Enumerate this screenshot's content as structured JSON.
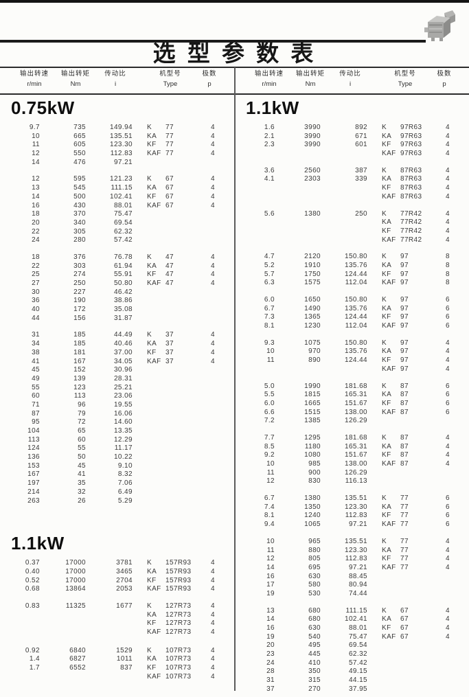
{
  "page": {
    "title": "选 型 参 数 表"
  },
  "columns": {
    "speed_zh": "输出转速",
    "speed_unit": "r/min",
    "torque_zh": "输出转矩",
    "torque_unit": "Nm",
    "ratio_zh": "传动比",
    "ratio_unit": "i",
    "type_zh": "机型号",
    "type_unit": "Type",
    "poles_zh": "极数",
    "poles_unit": "p"
  },
  "left": {
    "sections": [
      {
        "heading": "0.75kW",
        "blocks": [
          {
            "rows": [
              [
                "9.7",
                "735",
                "149.94",
                "K",
                "77",
                "4"
              ],
              [
                "10",
                "665",
                "135.51",
                "KA",
                "77",
                "4"
              ],
              [
                "11",
                "605",
                "123.30",
                "KF",
                "77",
                "4"
              ],
              [
                "12",
                "550",
                "112.83",
                "KAF",
                "77",
                "4"
              ],
              [
                "14",
                "476",
                "97.21",
                "",
                "",
                ""
              ]
            ]
          },
          {
            "rows": [
              [
                "12",
                "595",
                "121.23",
                "K",
                "67",
                "4"
              ],
              [
                "13",
                "545",
                "111.15",
                "KA",
                "67",
                "4"
              ],
              [
                "14",
                "500",
                "102.41",
                "KF",
                "67",
                "4"
              ],
              [
                "16",
                "430",
                "88.01",
                "KAF",
                "67",
                "4"
              ],
              [
                "18",
                "370",
                "75.47",
                "",
                "",
                ""
              ],
              [
                "20",
                "340",
                "69.54",
                "",
                "",
                ""
              ],
              [
                "22",
                "305",
                "62.32",
                "",
                "",
                ""
              ],
              [
                "24",
                "280",
                "57.42",
                "",
                "",
                ""
              ]
            ]
          },
          {
            "rows": [
              [
                "18",
                "376",
                "76.78",
                "K",
                "47",
                "4"
              ],
              [
                "22",
                "303",
                "61.94",
                "KA",
                "47",
                "4"
              ],
              [
                "25",
                "274",
                "55.91",
                "KF",
                "47",
                "4"
              ],
              [
                "27",
                "250",
                "50.80",
                "KAF",
                "47",
                "4"
              ],
              [
                "30",
                "227",
                "46.42",
                "",
                "",
                ""
              ],
              [
                "36",
                "190",
                "38.86",
                "",
                "",
                ""
              ],
              [
                "40",
                "172",
                "35.08",
                "",
                "",
                ""
              ],
              [
                "44",
                "156",
                "31.87",
                "",
                "",
                ""
              ]
            ]
          },
          {
            "rows": [
              [
                "31",
                "185",
                "44.49",
                "K",
                "37",
                "4"
              ],
              [
                "34",
                "185",
                "40.46",
                "KA",
                "37",
                "4"
              ],
              [
                "38",
                "181",
                "37.00",
                "KF",
                "37",
                "4"
              ],
              [
                "41",
                "167",
                "34.05",
                "KAF",
                "37",
                "4"
              ],
              [
                "45",
                "152",
                "30.96",
                "",
                "",
                ""
              ],
              [
                "49",
                "139",
                "28.31",
                "",
                "",
                ""
              ],
              [
                "55",
                "123",
                "25.21",
                "",
                "",
                ""
              ],
              [
                "60",
                "113",
                "23.06",
                "",
                "",
                ""
              ],
              [
                "71",
                "96",
                "19.55",
                "",
                "",
                ""
              ],
              [
                "87",
                "79",
                "16.06",
                "",
                "",
                ""
              ],
              [
                "95",
                "72",
                "14.60",
                "",
                "",
                ""
              ],
              [
                "104",
                "65",
                "13.35",
                "",
                "",
                ""
              ],
              [
                "113",
                "60",
                "12.29",
                "",
                "",
                ""
              ],
              [
                "124",
                "55",
                "11.17",
                "",
                "",
                ""
              ],
              [
                "136",
                "50",
                "10.22",
                "",
                "",
                ""
              ],
              [
                "153",
                "45",
                "9.10",
                "",
                "",
                ""
              ],
              [
                "167",
                "41",
                "8.32",
                "",
                "",
                ""
              ],
              [
                "197",
                "35",
                "7.06",
                "",
                "",
                ""
              ],
              [
                "214",
                "32",
                "6.49",
                "",
                "",
                ""
              ],
              [
                "263",
                "26",
                "5.29",
                "",
                "",
                ""
              ]
            ]
          }
        ]
      },
      {
        "heading": "1.1kW",
        "gap_before": 42,
        "blocks": [
          {
            "rows": [
              [
                "0.37",
                "17000",
                "3781",
                "K",
                "157R93",
                "4"
              ],
              [
                "0.40",
                "17000",
                "3465",
                "KA",
                "157R93",
                "4"
              ],
              [
                "0.52",
                "17000",
                "2704",
                "KF",
                "157R93",
                "4"
              ],
              [
                "0.68",
                "13864",
                "2053",
                "KAF",
                "157R93",
                "4"
              ]
            ]
          },
          {
            "rows": [
              [
                "0.83",
                "11325",
                "1677",
                "K",
                "127R73",
                "4"
              ],
              [
                "",
                "",
                "",
                "KA",
                "127R73",
                "4"
              ],
              [
                "",
                "",
                "",
                "KF",
                "127R73",
                "4"
              ],
              [
                "",
                "",
                "",
                "KAF",
                "127R73",
                "4"
              ]
            ]
          },
          {
            "gap_before": 14,
            "rows": [
              [
                "0.92",
                "6840",
                "1529",
                "K",
                "107R73",
                "4"
              ],
              [
                "1.4",
                "6827",
                "1011",
                "KA",
                "107R73",
                "4"
              ],
              [
                "1.7",
                "6552",
                "837",
                "KF",
                "107R73",
                "4"
              ],
              [
                "",
                "",
                "",
                "KAF",
                "107R73",
                "4"
              ]
            ]
          }
        ]
      }
    ]
  },
  "right": {
    "sections": [
      {
        "heading": "1.1kW",
        "blocks": [
          {
            "rows": [
              [
                "1.6",
                "3990",
                "892",
                "K",
                "97R63",
                "4"
              ],
              [
                "2.1",
                "3990",
                "671",
                "KA",
                "97R63",
                "4"
              ],
              [
                "2.3",
                "3990",
                "601",
                "KF",
                "97R63",
                "4"
              ],
              [
                "",
                "",
                "",
                "KAF",
                "97R63",
                "4"
              ]
            ]
          },
          {
            "rows": [
              [
                "3.6",
                "2560",
                "387",
                "K",
                "87R63",
                "4"
              ],
              [
                "4.1",
                "2303",
                "339",
                "KA",
                "87R63",
                "4"
              ],
              [
                "",
                "",
                "",
                "KF",
                "87R63",
                "4"
              ],
              [
                "",
                "",
                "",
                "KAF",
                "87R63",
                "4"
              ]
            ]
          },
          {
            "rows": [
              [
                "5.6",
                "1380",
                "250",
                "K",
                "77R42",
                "4"
              ],
              [
                "",
                "",
                "",
                "KA",
                "77R42",
                "4"
              ],
              [
                "",
                "",
                "",
                "KF",
                "77R42",
                "4"
              ],
              [
                "",
                "",
                "",
                "KAF",
                "77R42",
                "4"
              ]
            ]
          },
          {
            "rows": [
              [
                "4.7",
                "2120",
                "150.80",
                "K",
                "97",
                "8"
              ],
              [
                "5.2",
                "1910",
                "135.76",
                "KA",
                "97",
                "8"
              ],
              [
                "5.7",
                "1750",
                "124.44",
                "KF",
                "97",
                "8"
              ],
              [
                "6.3",
                "1575",
                "112.04",
                "KAF",
                "97",
                "8"
              ]
            ]
          },
          {
            "rows": [
              [
                "6.0",
                "1650",
                "150.80",
                "K",
                "97",
                "6"
              ],
              [
                "6.7",
                "1490",
                "135.76",
                "KA",
                "97",
                "6"
              ],
              [
                "7.3",
                "1365",
                "124.44",
                "KF",
                "97",
                "6"
              ],
              [
                "8.1",
                "1230",
                "112.04",
                "KAF",
                "97",
                "6"
              ]
            ]
          },
          {
            "rows": [
              [
                "9.3",
                "1075",
                "150.80",
                "K",
                "97",
                "4"
              ],
              [
                "10",
                "970",
                "135.76",
                "KA",
                "97",
                "4"
              ],
              [
                "11",
                "890",
                "124.44",
                "KF",
                "97",
                "4"
              ],
              [
                "",
                "",
                "",
                "KAF",
                "97",
                "4"
              ]
            ]
          },
          {
            "rows": [
              [
                "5.0",
                "1990",
                "181.68",
                "K",
                "87",
                "6"
              ],
              [
                "5.5",
                "1815",
                "165.31",
                "KA",
                "87",
                "6"
              ],
              [
                "6.0",
                "1665",
                "151.67",
                "KF",
                "87",
                "6"
              ],
              [
                "6.6",
                "1515",
                "138.00",
                "KAF",
                "87",
                "6"
              ],
              [
                "7.2",
                "1385",
                "126.29",
                "",
                "",
                ""
              ]
            ]
          },
          {
            "rows": [
              [
                "7.7",
                "1295",
                "181.68",
                "K",
                "87",
                "4"
              ],
              [
                "8.5",
                "1180",
                "165.31",
                "KA",
                "87",
                "4"
              ],
              [
                "9.2",
                "1080",
                "151.67",
                "KF",
                "87",
                "4"
              ],
              [
                "10",
                "985",
                "138.00",
                "KAF",
                "87",
                "4"
              ],
              [
                "11",
                "900",
                "126.29",
                "",
                "",
                ""
              ],
              [
                "12",
                "830",
                "116.13",
                "",
                "",
                ""
              ]
            ]
          },
          {
            "rows": [
              [
                "6.7",
                "1380",
                "135.51",
                "K",
                "77",
                "6"
              ],
              [
                "7.4",
                "1350",
                "123.30",
                "KA",
                "77",
                "6"
              ],
              [
                "8.1",
                "1240",
                "112.83",
                "KF",
                "77",
                "6"
              ],
              [
                "9.4",
                "1065",
                "97.21",
                "KAF",
                "77",
                "6"
              ]
            ]
          },
          {
            "rows": [
              [
                "10",
                "965",
                "135.51",
                "K",
                "77",
                "4"
              ],
              [
                "11",
                "880",
                "123.30",
                "KA",
                "77",
                "4"
              ],
              [
                "12",
                "805",
                "112.83",
                "KF",
                "77",
                "4"
              ],
              [
                "14",
                "695",
                "97.21",
                "KAF",
                "77",
                "4"
              ],
              [
                "16",
                "630",
                "88.45",
                "",
                "",
                ""
              ],
              [
                "17",
                "580",
                "80.94",
                "",
                "",
                ""
              ],
              [
                "19",
                "530",
                "74.44",
                "",
                "",
                ""
              ]
            ]
          },
          {
            "rows": [
              [
                "13",
                "680",
                "111.15",
                "K",
                "67",
                "4"
              ],
              [
                "14",
                "680",
                "102.41",
                "KA",
                "67",
                "4"
              ],
              [
                "16",
                "630",
                "88.01",
                "KF",
                "67",
                "4"
              ],
              [
                "19",
                "540",
                "75.47",
                "KAF",
                "67",
                "4"
              ],
              [
                "20",
                "495",
                "69.54",
                "",
                "",
                ""
              ],
              [
                "23",
                "445",
                "62.32",
                "",
                "",
                ""
              ],
              [
                "24",
                "410",
                "57.42",
                "",
                "",
                ""
              ],
              [
                "28",
                "350",
                "49.15",
                "",
                "",
                ""
              ],
              [
                "31",
                "315",
                "44.15",
                "",
                "",
                ""
              ],
              [
                "37",
                "270",
                "37.95",
                "",
                "",
                ""
              ]
            ]
          }
        ]
      }
    ]
  }
}
